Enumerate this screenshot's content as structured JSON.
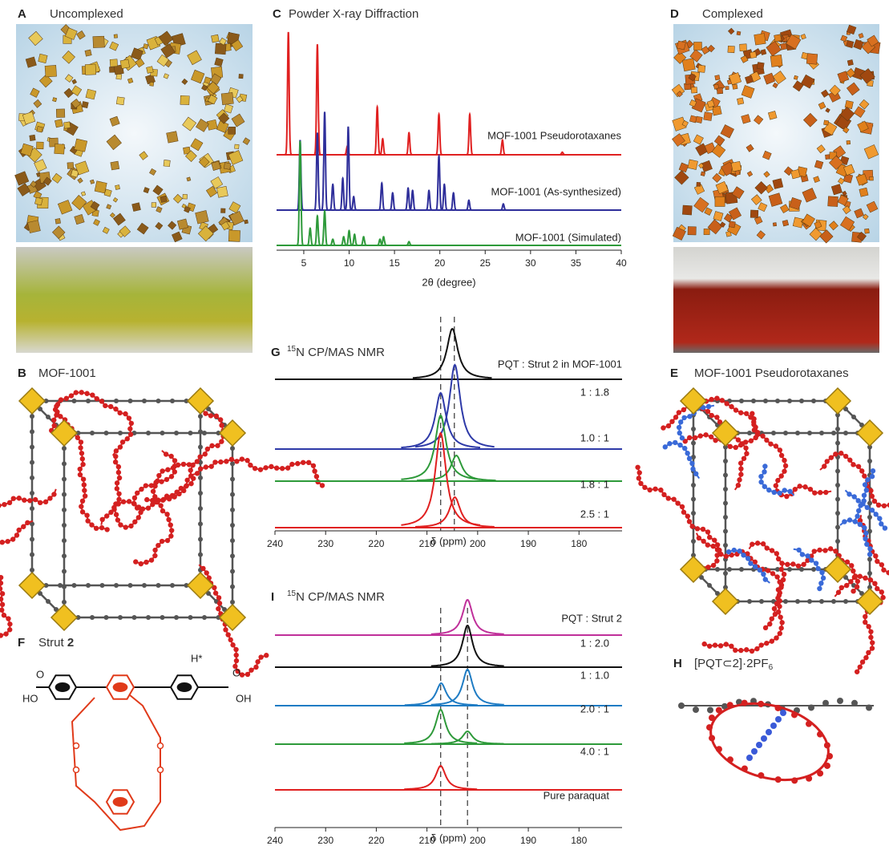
{
  "panels": {
    "A": {
      "label": "A",
      "title": "Uncomplexed"
    },
    "B": {
      "label": "B",
      "title": "MOF-1001"
    },
    "D": {
      "label": "D",
      "title": "Complexed"
    },
    "E": {
      "label": "E",
      "title": "MOF-1001 Pseudorotaxanes"
    },
    "F": {
      "label": "F",
      "title": "Strut",
      "title_bold": "2",
      "atoms": [
        "O",
        "HO",
        "H*",
        "O",
        "OH"
      ]
    },
    "H": {
      "label": "H",
      "title": "[PQT⊂2]·2PF",
      "title_sub": "6"
    }
  },
  "chart_data": [
    {
      "label": "C",
      "type": "spectrum",
      "title": "Powder X-ray Diffraction",
      "x_label": "2θ (degree)",
      "xlim": [
        2,
        40
      ],
      "xticks": [
        5,
        10,
        15,
        20,
        25,
        30,
        35,
        40
      ],
      "series": [
        {
          "name": "MOF-1001 Pseudorotaxanes",
          "color": "#e02020",
          "x": [
            3.3,
            6.5,
            9.8,
            13.1,
            13.7,
            16.6,
            19.9,
            23.3,
            26.9,
            33.5
          ],
          "values": [
            100,
            90,
            7,
            39,
            13,
            18,
            33,
            33,
            12,
            2
          ]
        },
        {
          "name": "MOF-1001 (As-synthesized)",
          "color": "#2e2e9a",
          "x": [
            4.6,
            6.5,
            7.3,
            8.2,
            9.3,
            9.9,
            10.5,
            13.6,
            14.8,
            16.5,
            17.0,
            18.8,
            19.9,
            20.5,
            21.5,
            23.2,
            27.0
          ],
          "values": [
            57,
            63,
            80,
            21,
            26,
            68,
            11,
            22,
            14,
            18,
            16,
            16,
            44,
            21,
            14,
            8,
            5
          ]
        },
        {
          "name": "MOF-1001 (Simulated)",
          "color": "#2e9a3a",
          "x": [
            4.6,
            5.7,
            6.5,
            7.3,
            8.2,
            9.4,
            10.0,
            10.6,
            11.6,
            13.4,
            13.8,
            16.6
          ],
          "values": [
            85,
            14,
            24,
            28,
            5,
            7,
            12,
            9,
            7,
            5,
            7,
            3
          ]
        }
      ]
    },
    {
      "label": "G",
      "type": "spectrum",
      "title_sup": "15",
      "title": "N CP/MAS NMR",
      "legend_title": "PQT : Strut 2 in MOF-1001",
      "x_label": "δ (ppm)",
      "xlim": [
        240,
        171.5
      ],
      "xticks": [
        240,
        230,
        220,
        210,
        200,
        190,
        180
      ],
      "ref_lines": [
        207.3,
        204.6
      ],
      "series": [
        {
          "name": "1 : 1.8",
          "color": "#111111",
          "x": [
            205.0
          ],
          "values": [
            63
          ]
        },
        {
          "name": "1.0 : 1",
          "color": "#2e3aa8",
          "x": [
            207.3,
            204.5
          ],
          "values": [
            70,
            105
          ]
        },
        {
          "name": "1.8 : 1",
          "color": "#2e9a3a",
          "x": [
            207.3,
            204.2
          ],
          "values": [
            82,
            32
          ]
        },
        {
          "name": "2.5 : 1",
          "color": "#e02020",
          "x": [
            207.3,
            204.5
          ],
          "values": [
            118,
            38
          ]
        }
      ]
    },
    {
      "label": "I",
      "type": "spectrum",
      "title_sup": "15",
      "title": "N CP/MAS NMR",
      "legend_title": "PQT : Strut 2",
      "x_label": "δ (ppm)",
      "xlim": [
        240,
        171.5
      ],
      "xticks": [
        240,
        230,
        220,
        210,
        200,
        190,
        180
      ],
      "ref_lines": [
        207.3,
        202.0
      ],
      "series": [
        {
          "name": "1 : 2.0",
          "color": "#c0309a",
          "x": [
            202.0
          ],
          "values": [
            44
          ]
        },
        {
          "name": "1 : 1.0",
          "color": "#111111",
          "x": [
            202.0
          ],
          "values": [
            52
          ]
        },
        {
          "name": "2.0 : 1",
          "color": "#1f7cc4",
          "x": [
            207.2,
            202.0
          ],
          "values": [
            28,
            45
          ]
        },
        {
          "name": "4.0 : 1",
          "color": "#2e9a3a",
          "x": [
            207.3,
            202.0
          ],
          "values": [
            43,
            16
          ]
        },
        {
          "name": "Pure paraquat",
          "color": "#e02020",
          "x": [
            207.3
          ],
          "values": [
            30
          ]
        }
      ]
    }
  ]
}
